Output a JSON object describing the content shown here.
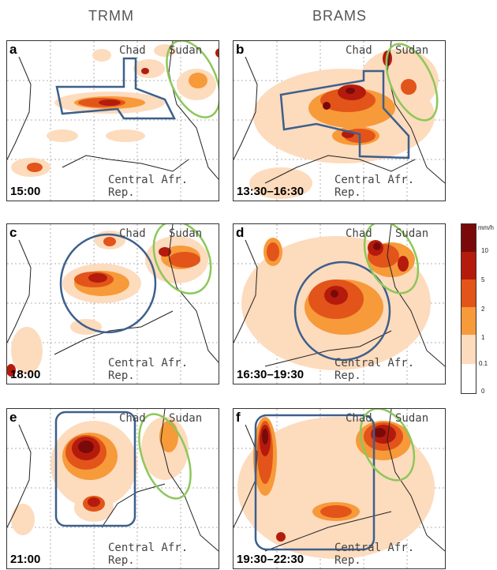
{
  "columns": [
    "TRMM",
    "BRAMS"
  ],
  "place_labels": {
    "chad": "Chad",
    "sudan": "Sudan",
    "car": "Central Afr. Rep."
  },
  "panels": [
    {
      "letter": "a",
      "time": "15:00"
    },
    {
      "letter": "b",
      "time": "13:30–16:30"
    },
    {
      "letter": "c",
      "time": "18:00"
    },
    {
      "letter": "d",
      "time": "16:30–19:30"
    },
    {
      "letter": "e",
      "time": "21:00"
    },
    {
      "letter": "f",
      "time": "19:30–22:30"
    }
  ],
  "colorbar": {
    "unit": "mm/h",
    "ticks": [
      "10",
      "5",
      "2",
      "1",
      "0.1",
      "0"
    ],
    "colors": [
      "#7a0a0a",
      "#b51b0c",
      "#e2541a",
      "#f79a3a",
      "#fddbbd",
      "#ffffff"
    ]
  },
  "outline_colors": {
    "blue": "#3d5f8c",
    "green": "#8cc759"
  }
}
